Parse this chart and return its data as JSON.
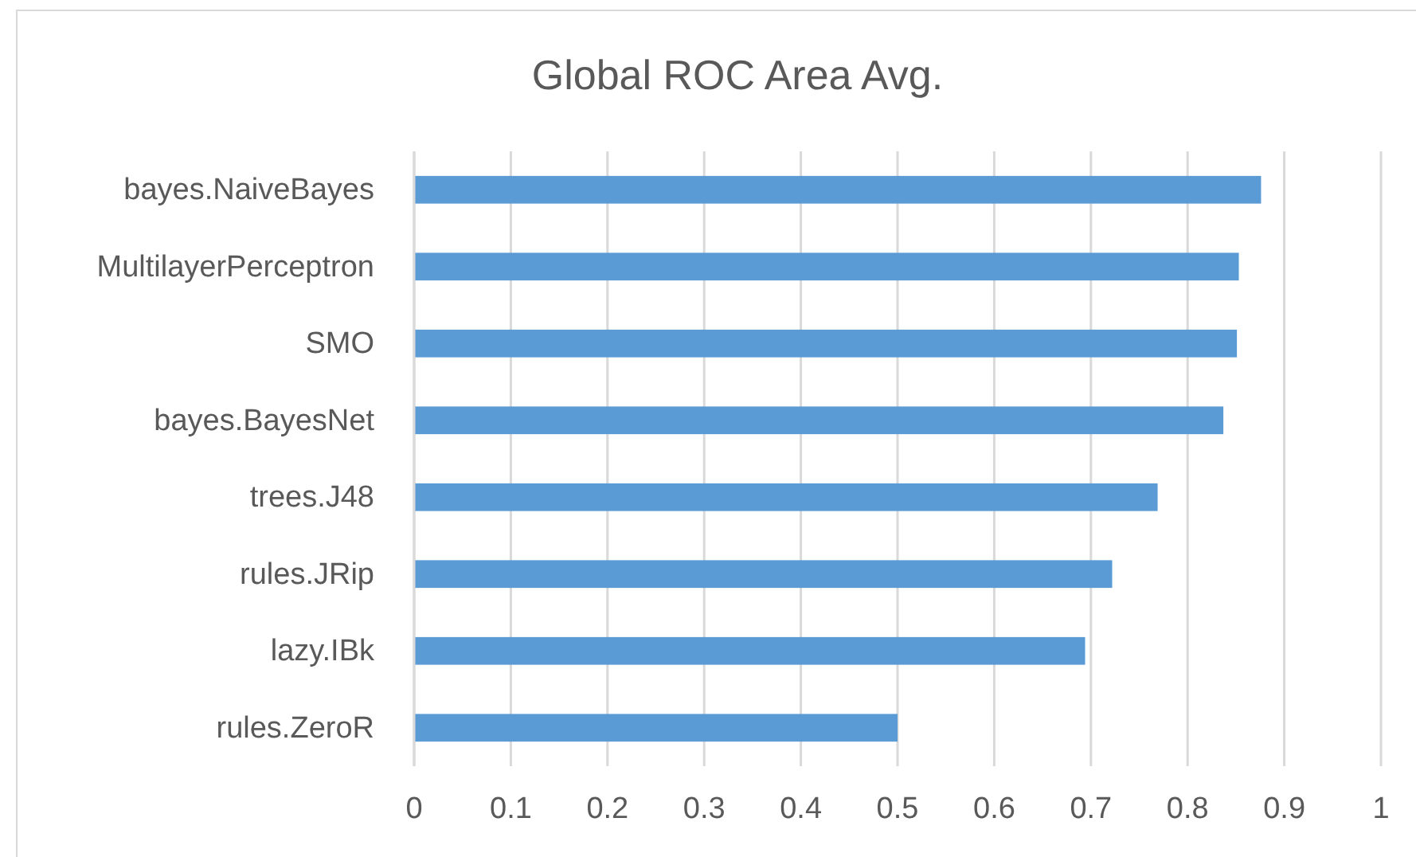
{
  "chart_data": {
    "type": "bar",
    "orientation": "horizontal",
    "title": "Global ROC Area Avg.",
    "categories": [
      "bayes.NaiveBayes",
      "MultilayerPerceptron",
      "SMO",
      "bayes.BayesNet",
      "trees.J48",
      "rules.JRip",
      "lazy.IBk",
      "rules.ZeroR"
    ],
    "values": [
      0.876,
      0.853,
      0.851,
      0.837,
      0.769,
      0.722,
      0.694,
      0.5
    ],
    "color": "#5b9bd5",
    "xlim": [
      0,
      1
    ],
    "xticks": [
      0,
      0.1,
      0.2,
      0.3,
      0.4,
      0.5,
      0.6,
      0.7,
      0.8,
      0.9,
      1
    ],
    "grid": "x"
  }
}
